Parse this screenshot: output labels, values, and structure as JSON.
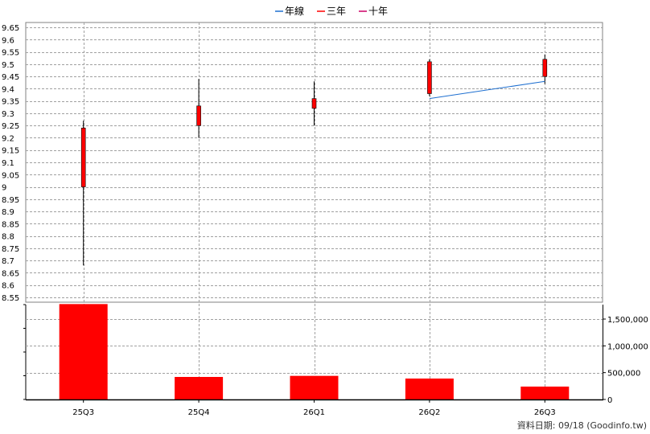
{
  "chart_data": {
    "type": "candlestick",
    "legend": [
      {
        "label": "年線",
        "color": "#1e6fd0"
      },
      {
        "label": "三年",
        "color": "#ff0000"
      },
      {
        "label": "十年",
        "color": "#cc0066"
      }
    ],
    "categories": [
      "25Q3",
      "25Q4",
      "26Q1",
      "26Q2",
      "26Q3"
    ],
    "price": {
      "yticks": [
        8.55,
        8.6,
        8.65,
        8.7,
        8.75,
        8.8,
        8.85,
        8.9,
        8.95,
        9,
        9.05,
        9.1,
        9.15,
        9.2,
        9.25,
        9.3,
        9.35,
        9.4,
        9.45,
        9.5,
        9.55,
        9.6,
        9.65
      ],
      "ylim": [
        8.53,
        9.67
      ],
      "candles": [
        {
          "open": 9.0,
          "close": 9.24,
          "high": 9.27,
          "low": 8.68
        },
        {
          "open": 9.25,
          "close": 9.33,
          "high": 9.44,
          "low": 9.2
        },
        {
          "open": 9.32,
          "close": 9.36,
          "high": 9.43,
          "low": 9.25
        },
        {
          "open": 9.38,
          "close": 9.51,
          "high": 9.52,
          "low": 9.37
        },
        {
          "open": 9.45,
          "close": 9.52,
          "high": 9.54,
          "low": 9.42
        }
      ],
      "year_line": {
        "name": "年線",
        "x": [
          "26Q2",
          "26Q3"
        ],
        "values": [
          9.36,
          9.43
        ]
      }
    },
    "volume": {
      "values": [
        1780000,
        420000,
        440000,
        390000,
        240000
      ],
      "yticks": [
        0,
        500000,
        1000000,
        1500000
      ],
      "ytick_labels": [
        "0",
        "500,000",
        "1,000,000",
        "1,500,000"
      ],
      "ylim": [
        0,
        1770000
      ]
    },
    "colors": {
      "candle": "#ff0000",
      "volume": "#ff0000",
      "grid": "#a0a0a0",
      "year_line": "#1e6fd0"
    }
  },
  "footer": {
    "source": "資料日期: 09/18  (Goodinfo.tw)"
  }
}
